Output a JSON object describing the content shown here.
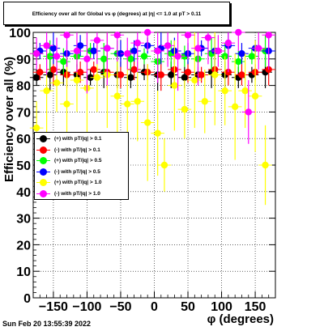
{
  "title": "Efficiency over all for Global vs φ (degrees) at |η| <= 1.0 at pT > 0.11",
  "timestamp": "Sun Feb 20 13:55:39 2022",
  "chart_data": {
    "type": "scatter",
    "title": "Efficiency over all for Global vs φ (degrees) at |η| <= 1.0 at pT > 0.11",
    "xlabel": "φ (degrees)",
    "ylabel": "Efficiency over all (%)",
    "xlim": [
      -180,
      180
    ],
    "ylim": [
      0,
      100
    ],
    "x_ticks": [
      -150,
      -100,
      -50,
      0,
      50,
      100,
      150
    ],
    "y_ticks": [
      0,
      10,
      20,
      30,
      40,
      50,
      60,
      70,
      80,
      90,
      100
    ],
    "grid": true,
    "legend_position": "left-middle",
    "series": [
      {
        "name": "(+) with pT/|q| > 0.1",
        "color": "#000000",
        "x": [
          -175,
          -155,
          -135,
          -115,
          -95,
          -75,
          -55,
          -35,
          -15,
          5,
          25,
          45,
          65,
          85,
          105,
          125,
          145,
          165
        ],
        "y": [
          83,
          84,
          85,
          84,
          83,
          85,
          84,
          83,
          85,
          84,
          84,
          83,
          84,
          85,
          84,
          83,
          84,
          85
        ]
      },
      {
        "name": "(-) with pT/|q| > 0.1",
        "color": "#ff0000",
        "x": [
          -170,
          -150,
          -130,
          -110,
          -90,
          -70,
          -50,
          -30,
          -10,
          10,
          30,
          50,
          70,
          90,
          110,
          130,
          150,
          170
        ],
        "y": [
          85,
          86,
          84,
          85,
          86,
          85,
          84,
          86,
          85,
          84,
          86,
          85,
          84,
          86,
          85,
          84,
          85,
          86
        ]
      },
      {
        "name": "(+) with pT/|q| > 0.5",
        "color": "#00ff00",
        "x": [
          -175,
          -155,
          -135,
          -115,
          -95,
          -75,
          -55,
          -35,
          -15,
          5,
          25,
          45,
          65,
          85,
          105,
          125,
          145,
          165
        ],
        "y": [
          92,
          91,
          89,
          91,
          93,
          90,
          92,
          90,
          91,
          89,
          92,
          91,
          90,
          92,
          91,
          89,
          91,
          93
        ]
      },
      {
        "name": "(-) with pT/|q| > 0.5",
        "color": "#0000ff",
        "x": [
          -170,
          -150,
          -130,
          -110,
          -90,
          -70,
          -50,
          -30,
          -10,
          10,
          30,
          50,
          70,
          90,
          110,
          130,
          150,
          170
        ],
        "y": [
          93,
          94,
          92,
          95,
          93,
          94,
          92,
          93,
          95,
          94,
          93,
          92,
          94,
          93,
          95,
          92,
          94,
          93
        ]
      },
      {
        "name": "(+) with pT/|q| > 1.0",
        "color": "#ffff00",
        "x": [
          -175,
          -160,
          -145,
          -130,
          -115,
          -100,
          -85,
          -70,
          -55,
          -40,
          -25,
          -10,
          5,
          15,
          30,
          45,
          60,
          75,
          90,
          105,
          120,
          135,
          150,
          165
        ],
        "y": [
          64,
          78,
          81,
          73,
          82,
          79,
          83,
          84,
          76,
          73,
          74,
          66,
          62,
          50,
          80,
          71,
          82,
          74,
          84,
          78,
          72,
          78,
          76,
          50
        ]
      },
      {
        "name": "(-) with pT/|q| > 1.0",
        "color": "#ff00ff",
        "x": [
          -175,
          -160,
          -145,
          -130,
          -115,
          -100,
          -85,
          -70,
          -55,
          -40,
          -25,
          -10,
          5,
          20,
          35,
          50,
          65,
          80,
          95,
          110,
          125,
          140,
          155,
          170
        ],
        "y": [
          92,
          95,
          91,
          99,
          93,
          90,
          97,
          94,
          99,
          92,
          96,
          100,
          93,
          95,
          91,
          99,
          94,
          98,
          93,
          96,
          100,
          70,
          94,
          99
        ]
      }
    ]
  }
}
